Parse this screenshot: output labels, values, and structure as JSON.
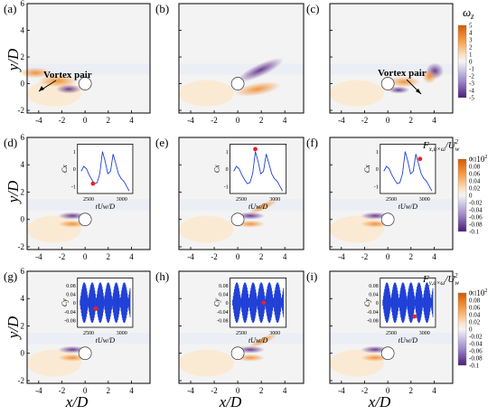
{
  "figure": {
    "panel_labels": [
      "(a)",
      "(b)",
      "(c)",
      "(d)",
      "(e)",
      "(f)",
      "(g)",
      "(h)",
      "(i)"
    ],
    "x_axis_label": "x/D",
    "y_axis_label": "y/D",
    "x_ticks": [
      "-4",
      "-2",
      "0",
      "2",
      "4"
    ],
    "y_ticks": [
      "-2",
      "0",
      "2",
      "4",
      "6"
    ],
    "annotations": {
      "a": "Vortex pair",
      "c": "Vortex pair"
    }
  },
  "colorbars": [
    {
      "label": "ωz",
      "ticks": [
        "5",
        "4",
        "3",
        "2",
        "1",
        "0",
        "-1",
        "-2",
        "-3",
        "-4",
        "-5"
      ],
      "multiplier": ""
    },
    {
      "label": "Fx,u×ω/Uw2",
      "label_main": "F",
      "label_sub": "x,u×ω",
      "label_den": "/U",
      "label_den_sub": "w",
      "label_den_sup": "2",
      "ticks": [
        "0.1",
        "0.08",
        "0.06",
        "0.04",
        "0.02",
        "0",
        "-0.02",
        "-0.04",
        "-0.06",
        "-0.08",
        "-0.1"
      ],
      "multiplier": "× 10",
      "multiplier_exp": "2"
    },
    {
      "label": "Fy,u×ω/Uw2",
      "label_main": "F",
      "label_sub": "y,u×ω",
      "label_den": "/U",
      "label_den_sub": "w",
      "label_den_sup": "2",
      "ticks": [
        "0.1",
        "0.08",
        "0.06",
        "0.04",
        "0.02",
        "0",
        "-0.02",
        "-0.04",
        "-0.06",
        "-0.08",
        "-0.1"
      ],
      "multiplier": "× 10",
      "multiplier_exp": "2"
    }
  ],
  "insets": {
    "row2": {
      "ylabel": "Cx",
      "yticks": [
        "1",
        "0",
        "-1"
      ],
      "xticks": [
        "2500",
        "3000"
      ],
      "xlabel": "tUw/D"
    },
    "row3": {
      "ylabel": "Cy",
      "yticks": [
        "0.08",
        "0.04",
        "0",
        "-0.04",
        "-0.08"
      ],
      "xticks": [
        "2500",
        "3000"
      ],
      "xlabel": "tUw/D"
    }
  },
  "colors": {
    "positive": "#e8761e",
    "negative": "#5b2a86",
    "neutral": "#f1f1f1",
    "marker": "#e3242b",
    "signal": "#1f3fd6"
  }
}
